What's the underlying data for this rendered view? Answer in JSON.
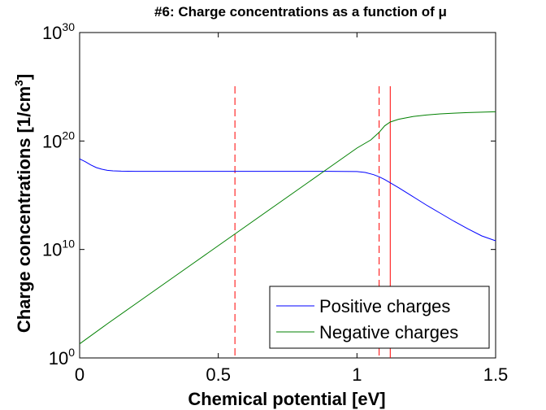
{
  "chart_data": {
    "type": "line",
    "title": "#6: Charge concentrations as a function of μ",
    "xlabel": "Chemical potential [eV]",
    "ylabel": "Charge concentrations [1/cm³]",
    "ylabel_main": "Charge concentrations [1/cm",
    "ylabel_sup": "3",
    "ylabel_end": "]",
    "xlim": [
      0,
      1.5
    ],
    "ylim_log10": [
      0,
      30
    ],
    "yscale": "log",
    "grid": false,
    "legend_position": "bottom-right",
    "xticks": [
      {
        "value": 0,
        "label": "0"
      },
      {
        "value": 0.5,
        "label": "0.5"
      },
      {
        "value": 1,
        "label": "1"
      },
      {
        "value": 1.5,
        "label": "1.5"
      }
    ],
    "yticks": [
      {
        "exp": 0,
        "base": "10",
        "sup": "0"
      },
      {
        "exp": 10,
        "base": "10",
        "sup": "10"
      },
      {
        "exp": 20,
        "base": "10",
        "sup": "20"
      },
      {
        "exp": 30,
        "base": "10",
        "sup": "30"
      }
    ],
    "series": [
      {
        "name": "Positive charges",
        "color": "#0000ff",
        "x": [
          0,
          0.02,
          0.04,
          0.06,
          0.08,
          0.1,
          0.12,
          0.15,
          0.2,
          0.3,
          0.5,
          0.7,
          0.9,
          1.0,
          1.03,
          1.06,
          1.08,
          1.1,
          1.12,
          1.15,
          1.2,
          1.25,
          1.3,
          1.35,
          1.4,
          1.45,
          1.5
        ],
        "log10_y": [
          18.35,
          18.1,
          17.8,
          17.55,
          17.4,
          17.3,
          17.25,
          17.22,
          17.2,
          17.2,
          17.2,
          17.2,
          17.2,
          17.18,
          17.1,
          16.9,
          16.7,
          16.45,
          16.15,
          15.7,
          14.9,
          14.1,
          13.35,
          12.6,
          11.9,
          11.25,
          10.8
        ]
      },
      {
        "name": "Negative charges",
        "color": "#008000",
        "x": [
          0,
          0.1,
          0.2,
          0.3,
          0.4,
          0.5,
          0.6,
          0.7,
          0.8,
          0.9,
          1.0,
          1.05,
          1.08,
          1.1,
          1.12,
          1.15,
          1.2,
          1.25,
          1.3,
          1.35,
          1.4,
          1.45,
          1.5
        ],
        "log10_y": [
          1.3,
          3.15,
          4.95,
          6.75,
          8.55,
          10.35,
          12.15,
          13.95,
          15.75,
          17.55,
          19.35,
          20.1,
          20.8,
          21.4,
          21.75,
          22.0,
          22.25,
          22.4,
          22.5,
          22.57,
          22.62,
          22.66,
          22.7
        ]
      }
    ],
    "vlines": [
      {
        "x": 0.56,
        "style": "dashed",
        "color": "#ff0000"
      },
      {
        "x": 1.08,
        "style": "dashed",
        "color": "#ff0000"
      },
      {
        "x": 1.12,
        "style": "solid",
        "color": "#ff0000"
      }
    ],
    "vline_range_log10": [
      0,
      30
    ]
  }
}
